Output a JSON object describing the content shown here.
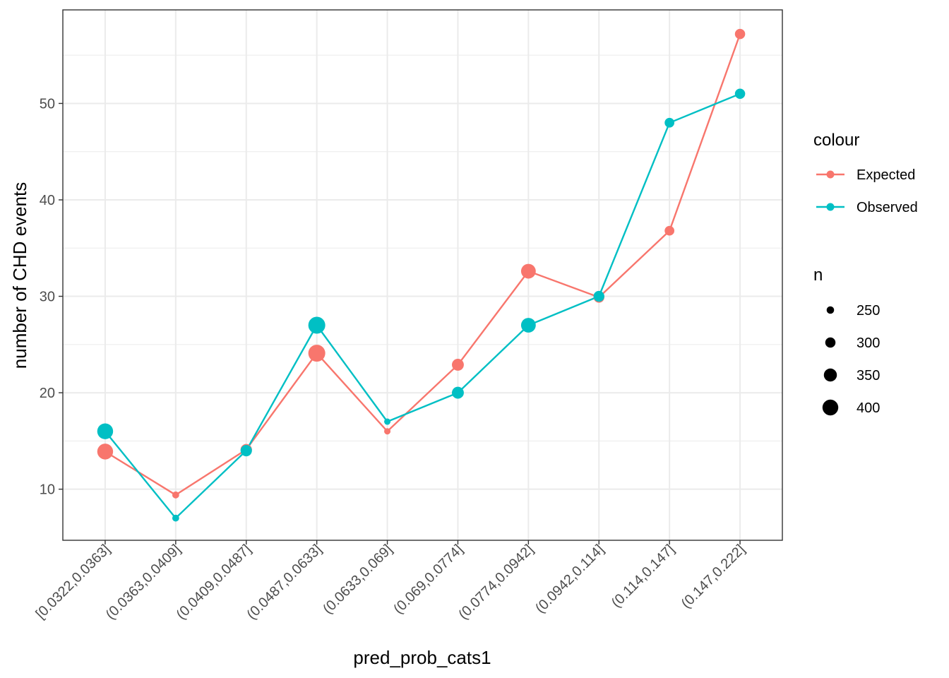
{
  "chart_data": {
    "type": "line",
    "xlabel": "pred_prob_cats1",
    "ylabel": "number of CHD events",
    "ylim": [
      4.7,
      59.7
    ],
    "yticks": [
      10,
      20,
      30,
      40,
      50
    ],
    "categories": [
      "[0.0322,0.0363]",
      "(0.0363,0.0409]",
      "(0.0409,0.0487]",
      "(0.0487,0.0633]",
      "(0.0633,0.069]",
      "(0.069,0.0774]",
      "(0.0774,0.0942]",
      "(0.0942,0.114]",
      "(0.114,0.147]",
      "(0.147,0.222]"
    ],
    "grid": true,
    "series": [
      {
        "name": "Expected",
        "color": "#F8766D",
        "values": [
          13.9,
          9.4,
          14.1,
          24.1,
          16.0,
          22.9,
          32.6,
          29.9,
          36.8,
          57.2
        ]
      },
      {
        "name": "Observed",
        "color": "#00BFC4",
        "values": [
          16,
          7,
          14,
          27,
          17,
          20,
          27,
          30,
          48,
          51
        ]
      }
    ],
    "n": [
      400,
      240,
      320,
      420,
      230,
      330,
      380,
      310,
      290,
      300
    ],
    "legend": {
      "colour_title": "colour",
      "colour_entries": [
        "Expected",
        "Observed"
      ],
      "size_title": "n",
      "size_entries": [
        250,
        300,
        350,
        400
      ],
      "placement": "right"
    }
  }
}
